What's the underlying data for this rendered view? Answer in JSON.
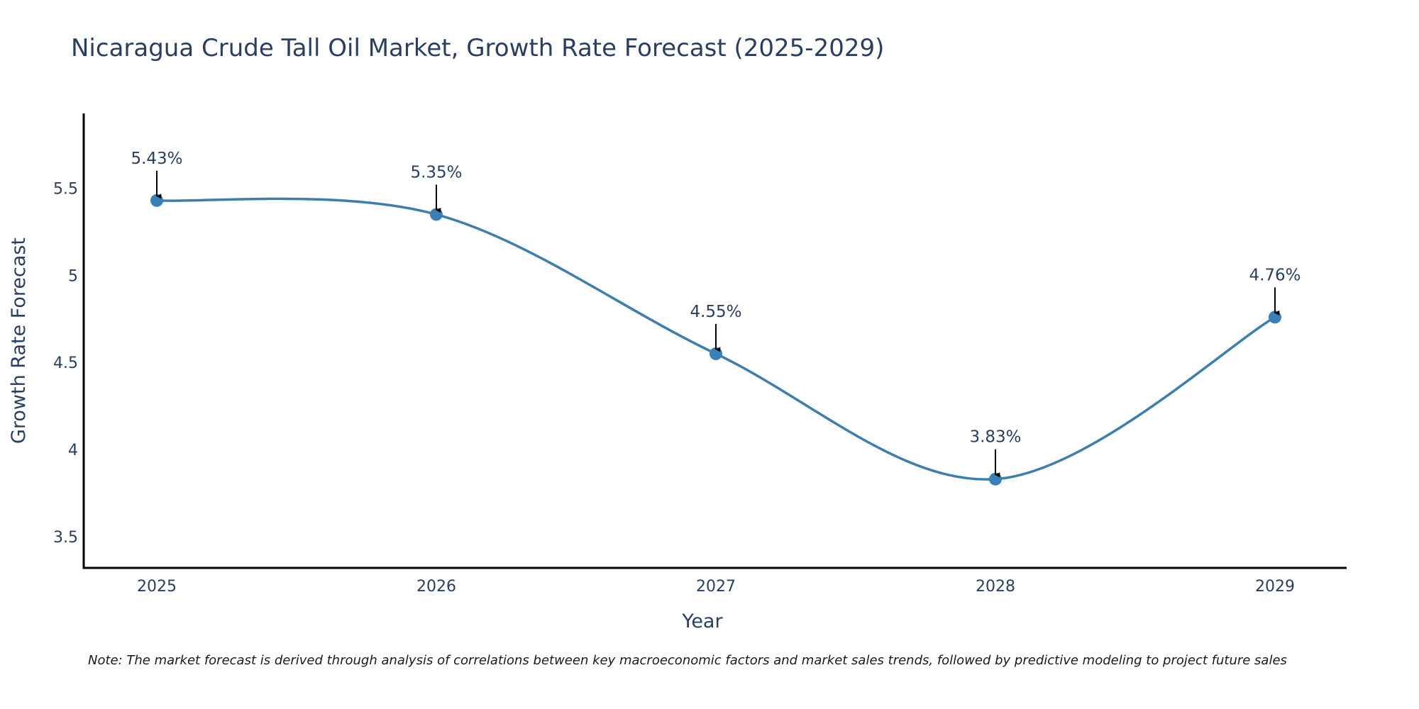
{
  "chart_data": {
    "type": "line",
    "title": "Nicaragua Crude Tall Oil Market, Growth Rate Forecast (2025-2029)",
    "xlabel": "Year",
    "ylabel": "Growth Rate Forecast",
    "categories": [
      "2025",
      "2026",
      "2027",
      "2028",
      "2029"
    ],
    "series": [
      {
        "name": "Growth Rate Forecast",
        "values": [
          5.43,
          5.35,
          4.55,
          3.83,
          4.76
        ],
        "labels": [
          "5.43%",
          "5.35%",
          "4.55%",
          "3.83%",
          "4.76%"
        ],
        "color": "#3d7eab",
        "marker_color": "#3a7fb5",
        "line_shape": "spline"
      }
    ],
    "yticks": [
      3.5,
      4,
      4.5,
      5,
      5.5
    ],
    "ytick_labels": [
      "3.5",
      "4",
      "4.5",
      "5",
      "5.5"
    ],
    "ylim": [
      3.32,
      5.93
    ],
    "grid": false,
    "legend": "none",
    "annotation_arrow_color": "#000000",
    "axis_line_color": "#000000",
    "text_color": "#2a3f5f"
  },
  "note": "Note: The market forecast is derived through analysis of correlations between key macroeconomic factors and market sales trends, followed by predictive modeling to project future sales"
}
